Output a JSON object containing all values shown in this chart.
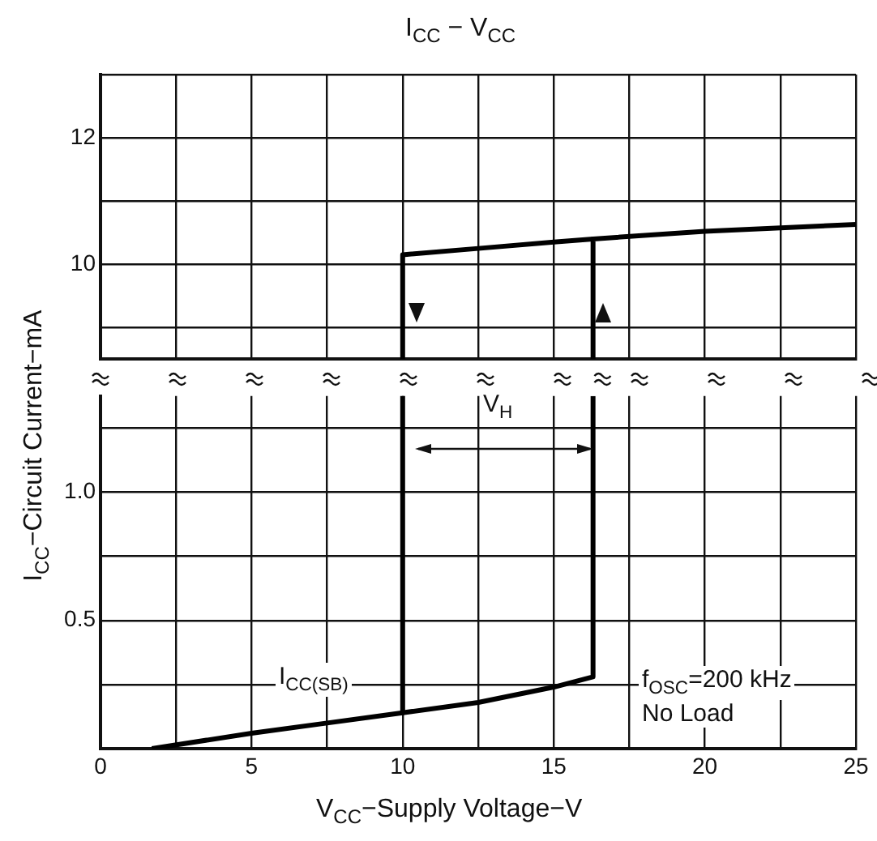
{
  "chart_data": [
    {
      "type": "line",
      "title": "I$_{CC}$ − V$_{CC}$",
      "tick_labels": "y",
      "grid": true,
      "xlim": [
        0,
        25
      ],
      "xticks": [
        0,
        {
          "value": 2.5,
          "label": null
        },
        5,
        {
          "value": 7.5,
          "label": null
        },
        10,
        {
          "value": 12.5,
          "label": null
        },
        15,
        {
          "value": 17.5,
          "label": null
        },
        20,
        {
          "value": 22.5,
          "label": null
        },
        25
      ],
      "ylim": [
        8.5,
        13
      ],
      "yticks": [
        {
          "value": 9,
          "label": null
        },
        10,
        {
          "value": 11,
          "label": null
        },
        12,
        {
          "value": 13,
          "label": null
        }
      ],
      "series": [
        {
          "color": "#000000",
          "x": [
            16.3,
            16.3,
            20,
            25
          ],
          "values": [
            8.5,
            10.4,
            10.52,
            10.63
          ]
        },
        {
          "color": "#000000",
          "x": [
            10,
            10,
            12.5,
            15,
            16.3
          ],
          "values": [
            8.5,
            10.15,
            10.25,
            10.35,
            10.4
          ]
        }
      ]
    },
    {
      "type": "line",
      "xlabel": "V$_{CC}$−Supply Voltage−V",
      "ylabel": "I$_{CC}$−Circuit Current−mA",
      "grid": true,
      "xlim": [
        0,
        25
      ],
      "xticks": [
        0,
        {
          "value": 2.5,
          "label": null
        },
        5,
        {
          "value": 7.5,
          "label": null
        },
        10,
        {
          "value": 12.5,
          "label": null
        },
        15,
        {
          "value": 17.5,
          "label": null
        },
        20,
        {
          "value": 22.5,
          "label": null
        },
        25
      ],
      "ylim": [
        0,
        1.375
      ],
      "yticks": [
        {
          "value": 0,
          "label": null
        },
        {
          "value": 0.25,
          "label": null
        },
        0.5,
        {
          "value": 0.75,
          "label": null
        },
        {
          "value": 1,
          "label": "1.0"
        },
        {
          "value": 1.25,
          "label": null
        }
      ],
      "series": [
        {
          "color": "#000000",
          "x": [
            1.7,
            5,
            7.5,
            10,
            12.5,
            15,
            16.3,
            16.3
          ],
          "values": [
            0,
            0.06,
            0.1,
            0.14,
            0.18,
            0.24,
            0.28,
            1.375
          ]
        },
        {
          "color": "#000000",
          "x": [
            10,
            10
          ],
          "values": [
            1.375,
            0.14
          ]
        }
      ],
      "annotations": [
        "I$_{CC(SB)}$",
        "V$_{H}$",
        "f$_{OSC}$=200 kHz",
        "No Load"
      ]
    }
  ]
}
